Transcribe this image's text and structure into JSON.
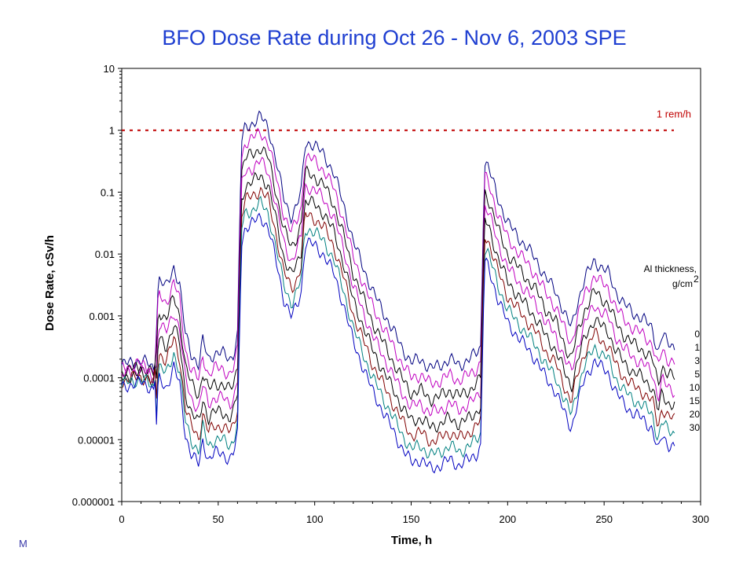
{
  "corner_text": "M",
  "chart_data": {
    "type": "line",
    "title": "BFO Dose Rate during Oct 26 - Nov 6, 2003 SPE",
    "xlabel": "Time, h",
    "ylabel": "Dose Rate, cSv/h",
    "xlim": [
      0,
      300
    ],
    "ylim": [
      1e-06,
      10
    ],
    "yscale": "log",
    "xticks": [
      "0",
      "50",
      "100",
      "150",
      "200",
      "250",
      "300"
    ],
    "yticks": [
      "10",
      "1",
      "0.1",
      "0.01",
      "0.001",
      "0.0001",
      "0.00001",
      "0.000001"
    ],
    "grid": false,
    "legend_title_line1": "Al thickness,",
    "legend_title_line2": "g/cm",
    "legend_title_sup": "2",
    "legend_position": "right",
    "reference_line": {
      "value": 1,
      "label": "1 rem/h",
      "color": "#c00000"
    },
    "colors": [
      "#000080",
      "#c000c0",
      "#000000",
      "#c000c0",
      "#000000",
      "#800000",
      "#008080",
      "#0000c0"
    ],
    "envelope": {
      "x": [
        0,
        5,
        10,
        14,
        17,
        19,
        23,
        27,
        30,
        33,
        36,
        40,
        42,
        45,
        48,
        52,
        56,
        58,
        60,
        62,
        64,
        68,
        72,
        76,
        80,
        84,
        88,
        91,
        93,
        95,
        97,
        100,
        105,
        110,
        115,
        120,
        125,
        130,
        135,
        140,
        145,
        150,
        155,
        160,
        165,
        170,
        175,
        180,
        184,
        186,
        188,
        190,
        195,
        200,
        205,
        210,
        215,
        220,
        225,
        230,
        233,
        236,
        240,
        245,
        248,
        252,
        256,
        260,
        265,
        270,
        275,
        278,
        280,
        283,
        287
      ],
      "log10_dose": [
        -3.8,
        -3.75,
        -3.72,
        -3.78,
        -3.85,
        -2.4,
        -2.55,
        -2.2,
        -2.5,
        -3.3,
        -3.6,
        -3.8,
        -3.4,
        -3.7,
        -3.6,
        -3.6,
        -3.7,
        -3.6,
        -3.3,
        -0.2,
        0.05,
        0.12,
        0.22,
        0.05,
        -0.5,
        -1.1,
        -1.4,
        -1.2,
        -1.0,
        -0.2,
        -0.2,
        -0.25,
        -0.4,
        -0.7,
        -1.2,
        -1.8,
        -2.2,
        -2.6,
        -2.9,
        -3.2,
        -3.5,
        -3.75,
        -3.7,
        -3.85,
        -3.8,
        -3.7,
        -3.8,
        -3.7,
        -3.6,
        -3.5,
        -0.5,
        -0.6,
        -1.1,
        -1.5,
        -1.7,
        -1.9,
        -2.1,
        -2.4,
        -2.6,
        -3.0,
        -3.2,
        -2.8,
        -2.4,
        -2.1,
        -2.2,
        -2.3,
        -2.6,
        -2.8,
        -2.95,
        -3.05,
        -3.2,
        -3.6,
        -3.3,
        -3.45,
        -3.5
      ]
    },
    "series": [
      {
        "name": "0",
        "offset": 0.0
      },
      {
        "name": "1",
        "offset": -0.25
      },
      {
        "name": "3",
        "offset": -0.5
      },
      {
        "name": "5",
        "offset": -0.72
      },
      {
        "name": "10",
        "offset": -0.95
      },
      {
        "name": "15",
        "offset": -1.18
      },
      {
        "name": "20",
        "offset": -1.4
      },
      {
        "name": "30",
        "offset": -1.62
      }
    ]
  }
}
